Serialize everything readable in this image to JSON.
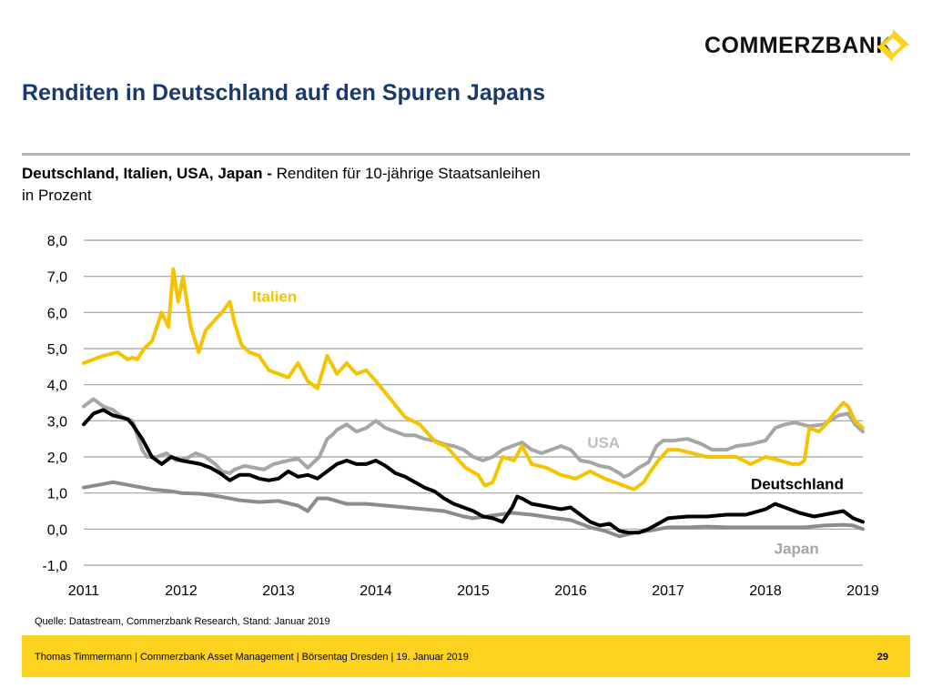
{
  "brand": {
    "name": "COMMERZBANK",
    "logo_color": "#FDD320"
  },
  "title": "Renditen in Deutschland auf den Spuren Japans",
  "subtitle": {
    "countries": "Deutschland, Italien, USA, Japan -",
    "measure": " Renditen für 10-jährige Staatsanleihen",
    "unit": "in Prozent"
  },
  "source": "Quelle: Datastream, Commerzbank Research, Stand: Januar 2019",
  "footer": {
    "text": "Thomas Timmermann | Commerzbank Asset Management | Börsentag Dresden | 19. Januar 2019",
    "page": "29",
    "color": "#FDD320"
  },
  "chart_data": {
    "type": "line",
    "title": "Deutschland, Italien, USA, Japan - Renditen für 10-jährige Staatsanleihen",
    "ylabel": "in Prozent",
    "xlabel": "",
    "ylim": [
      -1.0,
      8.0
    ],
    "yticks": [
      "8,0",
      "7,0",
      "6,0",
      "5,0",
      "4,0",
      "3,0",
      "2,0",
      "1,0",
      "0,0",
      "-1,0"
    ],
    "xlim": [
      2011,
      2019
    ],
    "xticks": [
      "2011",
      "2012",
      "2013",
      "2014",
      "2015",
      "2016",
      "2017",
      "2018",
      "2019"
    ],
    "grid": true,
    "legend": "inline labels",
    "series": [
      {
        "name": "Italien",
        "color": "#F5C400",
        "label_color": "#F5C400",
        "x": [
          2011.0,
          2011.2,
          2011.35,
          2011.45,
          2011.5,
          2011.55,
          2011.62,
          2011.7,
          2011.8,
          2011.87,
          2011.92,
          2011.97,
          2012.02,
          2012.1,
          2012.18,
          2012.25,
          2012.35,
          2012.42,
          2012.5,
          2012.55,
          2012.62,
          2012.7,
          2012.8,
          2012.9,
          2013.0,
          2013.1,
          2013.2,
          2013.3,
          2013.4,
          2013.5,
          2013.6,
          2013.7,
          2013.8,
          2013.9,
          2014.0,
          2014.15,
          2014.3,
          2014.45,
          2014.55,
          2014.62,
          2014.72,
          2014.82,
          2014.92,
          2015.05,
          2015.12,
          2015.2,
          2015.3,
          2015.42,
          2015.5,
          2015.6,
          2015.75,
          2015.9,
          2016.05,
          2016.2,
          2016.35,
          2016.45,
          2016.55,
          2016.65,
          2016.75,
          2016.82,
          2016.9,
          2017.0,
          2017.1,
          2017.25,
          2017.4,
          2017.55,
          2017.7,
          2017.85,
          2018.0,
          2018.15,
          2018.28,
          2018.35,
          2018.4,
          2018.45,
          2018.55,
          2018.62,
          2018.7,
          2018.8,
          2018.85,
          2018.92,
          2019.0
        ],
        "y": [
          4.6,
          4.8,
          4.9,
          4.7,
          4.75,
          4.7,
          5.0,
          5.2,
          6.0,
          5.6,
          7.2,
          6.3,
          7.0,
          5.6,
          4.9,
          5.5,
          5.8,
          6.0,
          6.3,
          5.7,
          5.1,
          4.9,
          4.8,
          4.4,
          4.3,
          4.2,
          4.6,
          4.1,
          3.9,
          4.8,
          4.3,
          4.6,
          4.3,
          4.4,
          4.1,
          3.6,
          3.1,
          2.9,
          2.6,
          2.4,
          2.3,
          2.0,
          1.7,
          1.5,
          1.2,
          1.3,
          2.0,
          1.9,
          2.3,
          1.8,
          1.7,
          1.5,
          1.4,
          1.6,
          1.4,
          1.3,
          1.2,
          1.1,
          1.3,
          1.6,
          1.9,
          2.2,
          2.2,
          2.1,
          2.0,
          2.0,
          2.0,
          1.8,
          2.0,
          1.9,
          1.8,
          1.8,
          1.9,
          2.8,
          2.7,
          2.9,
          3.2,
          3.5,
          3.4,
          3.0,
          2.8
        ]
      },
      {
        "name": "USA",
        "color": "#A6A6A6",
        "label_color": "#BFBFBF",
        "x": [
          2011.0,
          2011.1,
          2011.2,
          2011.3,
          2011.4,
          2011.5,
          2011.55,
          2011.6,
          2011.65,
          2011.75,
          2011.85,
          2011.95,
          2012.05,
          2012.15,
          2012.25,
          2012.35,
          2012.42,
          2012.5,
          2012.55,
          2012.65,
          2012.75,
          2012.85,
          2012.95,
          2013.1,
          2013.2,
          2013.3,
          2013.42,
          2013.5,
          2013.55,
          2013.6,
          2013.7,
          2013.8,
          2013.9,
          2014.0,
          2014.1,
          2014.2,
          2014.3,
          2014.4,
          2014.5,
          2014.6,
          2014.7,
          2014.8,
          2014.9,
          2015.0,
          2015.1,
          2015.2,
          2015.3,
          2015.4,
          2015.5,
          2015.6,
          2015.7,
          2015.8,
          2015.9,
          2016.0,
          2016.1,
          2016.2,
          2016.3,
          2016.4,
          2016.5,
          2016.55,
          2016.6,
          2016.7,
          2016.8,
          2016.88,
          2016.95,
          2017.05,
          2017.2,
          2017.35,
          2017.45,
          2017.6,
          2017.7,
          2017.85,
          2018.0,
          2018.1,
          2018.2,
          2018.3,
          2018.45,
          2018.6,
          2018.75,
          2018.85,
          2018.92,
          2019.0
        ],
        "y": [
          3.4,
          3.6,
          3.4,
          3.3,
          3.1,
          3.0,
          2.6,
          2.2,
          2.0,
          2.0,
          2.1,
          1.9,
          1.95,
          2.1,
          2.0,
          1.8,
          1.6,
          1.55,
          1.65,
          1.75,
          1.7,
          1.65,
          1.8,
          1.9,
          1.95,
          1.7,
          2.0,
          2.5,
          2.6,
          2.75,
          2.9,
          2.7,
          2.8,
          3.0,
          2.8,
          2.7,
          2.6,
          2.6,
          2.5,
          2.45,
          2.35,
          2.3,
          2.2,
          2.0,
          1.9,
          2.0,
          2.2,
          2.3,
          2.4,
          2.2,
          2.1,
          2.2,
          2.3,
          2.2,
          1.9,
          1.85,
          1.75,
          1.7,
          1.55,
          1.45,
          1.5,
          1.7,
          1.85,
          2.3,
          2.45,
          2.45,
          2.5,
          2.35,
          2.2,
          2.2,
          2.3,
          2.35,
          2.45,
          2.8,
          2.9,
          2.95,
          2.85,
          2.9,
          3.15,
          3.2,
          2.9,
          2.7
        ]
      },
      {
        "name": "Deutschland",
        "color": "#000000",
        "label_color": "#000000",
        "x": [
          2011.0,
          2011.1,
          2011.2,
          2011.3,
          2011.45,
          2011.5,
          2011.6,
          2011.7,
          2011.8,
          2011.9,
          2012.0,
          2012.1,
          2012.2,
          2012.3,
          2012.4,
          2012.5,
          2012.6,
          2012.7,
          2012.8,
          2012.9,
          2013.0,
          2013.1,
          2013.2,
          2013.3,
          2013.4,
          2013.5,
          2013.6,
          2013.7,
          2013.8,
          2013.9,
          2014.0,
          2014.1,
          2014.2,
          2014.3,
          2014.4,
          2014.5,
          2014.6,
          2014.7,
          2014.8,
          2014.9,
          2015.0,
          2015.1,
          2015.2,
          2015.3,
          2015.4,
          2015.45,
          2015.5,
          2015.6,
          2015.7,
          2015.8,
          2015.9,
          2016.0,
          2016.1,
          2016.2,
          2016.3,
          2016.4,
          2016.5,
          2016.6,
          2016.7,
          2016.8,
          2016.9,
          2017.0,
          2017.2,
          2017.4,
          2017.6,
          2017.8,
          2018.0,
          2018.1,
          2018.2,
          2018.35,
          2018.5,
          2018.6,
          2018.7,
          2018.8,
          2018.9,
          2019.0
        ],
        "y": [
          2.9,
          3.2,
          3.3,
          3.15,
          3.05,
          2.9,
          2.5,
          2.0,
          1.8,
          2.0,
          1.9,
          1.85,
          1.8,
          1.7,
          1.55,
          1.35,
          1.5,
          1.5,
          1.4,
          1.35,
          1.4,
          1.6,
          1.45,
          1.5,
          1.4,
          1.6,
          1.8,
          1.9,
          1.8,
          1.8,
          1.9,
          1.75,
          1.55,
          1.45,
          1.3,
          1.15,
          1.05,
          0.85,
          0.7,
          0.6,
          0.5,
          0.35,
          0.3,
          0.2,
          0.6,
          0.9,
          0.85,
          0.7,
          0.65,
          0.6,
          0.55,
          0.6,
          0.4,
          0.2,
          0.1,
          0.15,
          -0.05,
          -0.1,
          -0.1,
          0.0,
          0.15,
          0.3,
          0.35,
          0.35,
          0.4,
          0.4,
          0.55,
          0.7,
          0.6,
          0.45,
          0.35,
          0.4,
          0.45,
          0.5,
          0.3,
          0.2
        ]
      },
      {
        "name": "Japan",
        "color": "#8C8C8C",
        "label_color": "#A6A6A6",
        "x": [
          2011.0,
          2011.2,
          2011.3,
          2011.5,
          2011.7,
          2011.9,
          2012.0,
          2012.2,
          2012.4,
          2012.6,
          2012.8,
          2013.0,
          2013.2,
          2013.3,
          2013.4,
          2013.5,
          2013.7,
          2013.9,
          2014.1,
          2014.3,
          2014.5,
          2014.7,
          2014.9,
          2015.0,
          2015.2,
          2015.4,
          2015.6,
          2015.8,
          2016.0,
          2016.2,
          2016.35,
          2016.5,
          2016.65,
          2016.8,
          2017.0,
          2017.2,
          2017.4,
          2017.6,
          2017.8,
          2018.0,
          2018.2,
          2018.4,
          2018.6,
          2018.8,
          2018.9,
          2019.0
        ],
        "y": [
          1.15,
          1.25,
          1.3,
          1.2,
          1.1,
          1.05,
          1.0,
          0.98,
          0.9,
          0.8,
          0.75,
          0.78,
          0.65,
          0.5,
          0.85,
          0.85,
          0.7,
          0.7,
          0.65,
          0.6,
          0.55,
          0.5,
          0.35,
          0.3,
          0.38,
          0.45,
          0.4,
          0.32,
          0.25,
          0.05,
          -0.05,
          -0.2,
          -0.1,
          -0.05,
          0.05,
          0.05,
          0.07,
          0.05,
          0.05,
          0.05,
          0.05,
          0.05,
          0.1,
          0.12,
          0.1,
          0.0
        ]
      }
    ]
  }
}
